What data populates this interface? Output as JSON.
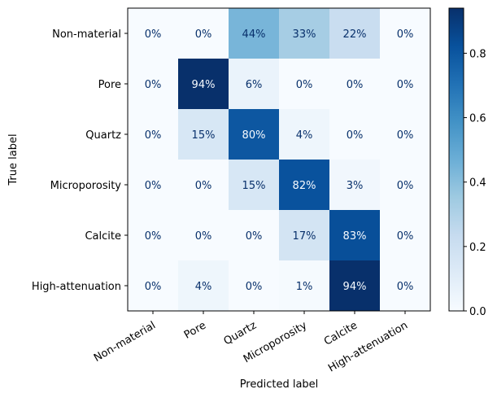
{
  "chart_data": {
    "type": "heatmap",
    "title": "",
    "xlabel": "Predicted label",
    "ylabel": "True label",
    "x_categories": [
      "Non-material",
      "Pore",
      "Quartz",
      "Microporosity",
      "Calcite",
      "High-attenuation"
    ],
    "y_categories": [
      "Non-material",
      "Pore",
      "Quartz",
      "Microporosity",
      "Calcite",
      "High-attenuation"
    ],
    "values": [
      [
        0.0,
        0.0,
        0.44,
        0.33,
        0.22,
        0.0
      ],
      [
        0.0,
        0.94,
        0.06,
        0.0,
        0.0,
        0.0
      ],
      [
        0.0,
        0.15,
        0.8,
        0.04,
        0.0,
        0.0
      ],
      [
        0.0,
        0.0,
        0.15,
        0.82,
        0.03,
        0.0
      ],
      [
        0.0,
        0.0,
        0.0,
        0.17,
        0.83,
        0.0
      ],
      [
        0.0,
        0.04,
        0.0,
        0.01,
        0.94,
        0.0
      ]
    ],
    "cell_labels": [
      [
        "0%",
        "0%",
        "44%",
        "33%",
        "22%",
        "0%"
      ],
      [
        "0%",
        "94%",
        "6%",
        "0%",
        "0%",
        "0%"
      ],
      [
        "0%",
        "15%",
        "80%",
        "4%",
        "0%",
        "0%"
      ],
      [
        "0%",
        "0%",
        "15%",
        "82%",
        "3%",
        "0%"
      ],
      [
        "0%",
        "0%",
        "0%",
        "17%",
        "83%",
        "0%"
      ],
      [
        "0%",
        "4%",
        "0%",
        "1%",
        "94%",
        "0%"
      ]
    ],
    "colormap": "Blues",
    "color_range": [
      0,
      0.94
    ],
    "colorbar_ticks": [
      "0.0",
      "0.2",
      "0.4",
      "0.6",
      "0.8"
    ],
    "colorbar_tick_values": [
      0.0,
      0.2,
      0.4,
      0.6,
      0.8
    ],
    "text_color_light": "#f7fbff",
    "text_color_dark": "#08306b"
  }
}
